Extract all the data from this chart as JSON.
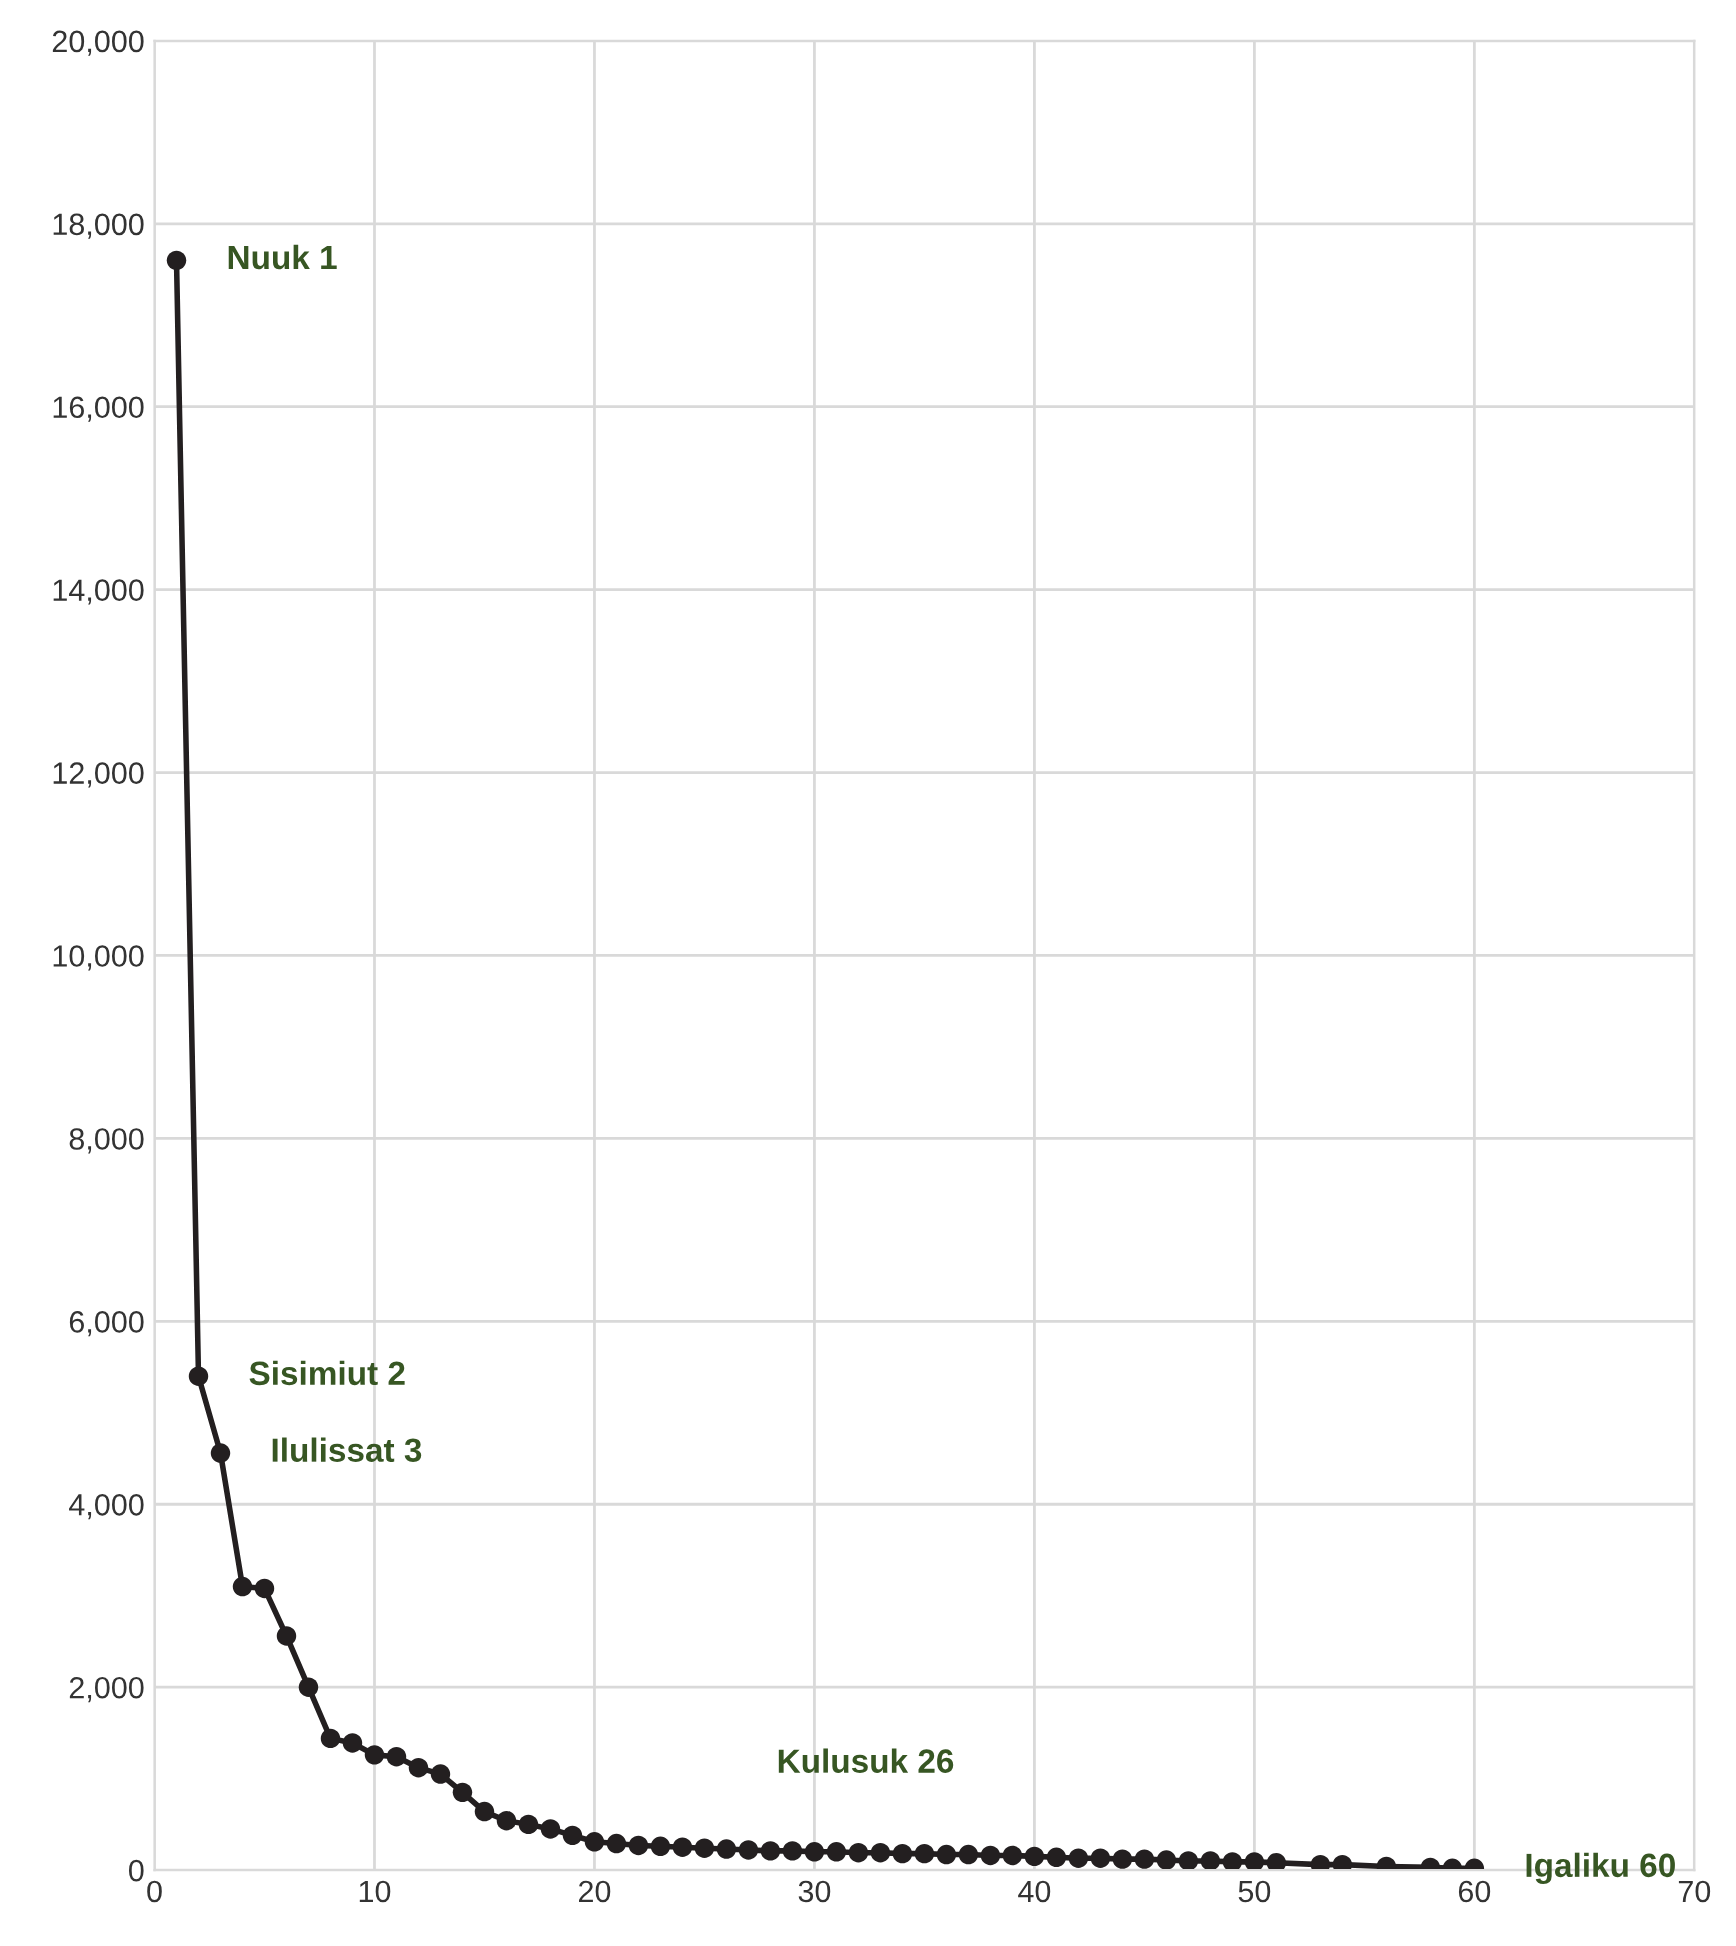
{
  "chart_data": {
    "type": "line",
    "x": [
      1,
      2,
      3,
      4,
      5,
      6,
      7,
      8,
      9,
      10,
      11,
      12,
      13,
      14,
      15,
      16,
      17,
      18,
      19,
      20,
      21,
      22,
      23,
      24,
      25,
      26,
      27,
      28,
      29,
      30,
      31,
      32,
      33,
      34,
      35,
      36,
      37,
      38,
      39,
      40,
      41,
      42,
      43,
      44,
      45,
      46,
      47,
      48,
      49,
      50,
      51,
      53,
      54,
      56,
      58,
      59,
      60
    ],
    "series": [
      {
        "color": "#231f20",
        "values": [
          17600,
          5400,
          4560,
          3100,
          3080,
          2560,
          2000,
          1440,
          1390,
          1260,
          1240,
          1120,
          1050,
          850,
          640,
          540,
          500,
          450,
          380,
          310,
          290,
          270,
          260,
          250,
          240,
          230,
          220,
          210,
          210,
          200,
          200,
          190,
          190,
          180,
          180,
          170,
          170,
          160,
          160,
          150,
          140,
          130,
          130,
          120,
          120,
          110,
          100,
          100,
          90,
          90,
          80,
          60,
          60,
          40,
          30,
          20,
          20
        ]
      }
    ],
    "marker": "circle",
    "line_style": "solid",
    "xlim": [
      0,
      70
    ],
    "xticks": [
      0,
      10,
      20,
      30,
      40,
      50,
      60,
      70
    ],
    "ylim": [
      0,
      20000
    ],
    "yticks": [
      {
        "value": 0,
        "label": "0"
      },
      {
        "value": 2000,
        "label": "2,000"
      },
      {
        "value": 4000,
        "label": "4,000"
      },
      {
        "value": 6000,
        "label": "6,000"
      },
      {
        "value": 8000,
        "label": "8,000"
      },
      {
        "value": 10000,
        "label": "10,000"
      },
      {
        "value": 12000,
        "label": "12,000"
      },
      {
        "value": 14000,
        "label": "14,000"
      },
      {
        "value": 16000,
        "label": "16,000"
      },
      {
        "value": 18000,
        "label": "18,000"
      },
      {
        "value": 20000,
        "label": "20,000"
      }
    ],
    "grid": true,
    "annotations": [
      {
        "text": "Nuuk 1",
        "x": 1,
        "y": 17600
      },
      {
        "text": "Sisimiut 2",
        "x": 2,
        "y": 5400
      },
      {
        "text": "Ilulissat 3",
        "x": 3,
        "y": 4560
      },
      "Kulusuk 26",
      {
        "text": "Igaliku 60",
        "x": 60,
        "y": 20
      }
    ]
  }
}
